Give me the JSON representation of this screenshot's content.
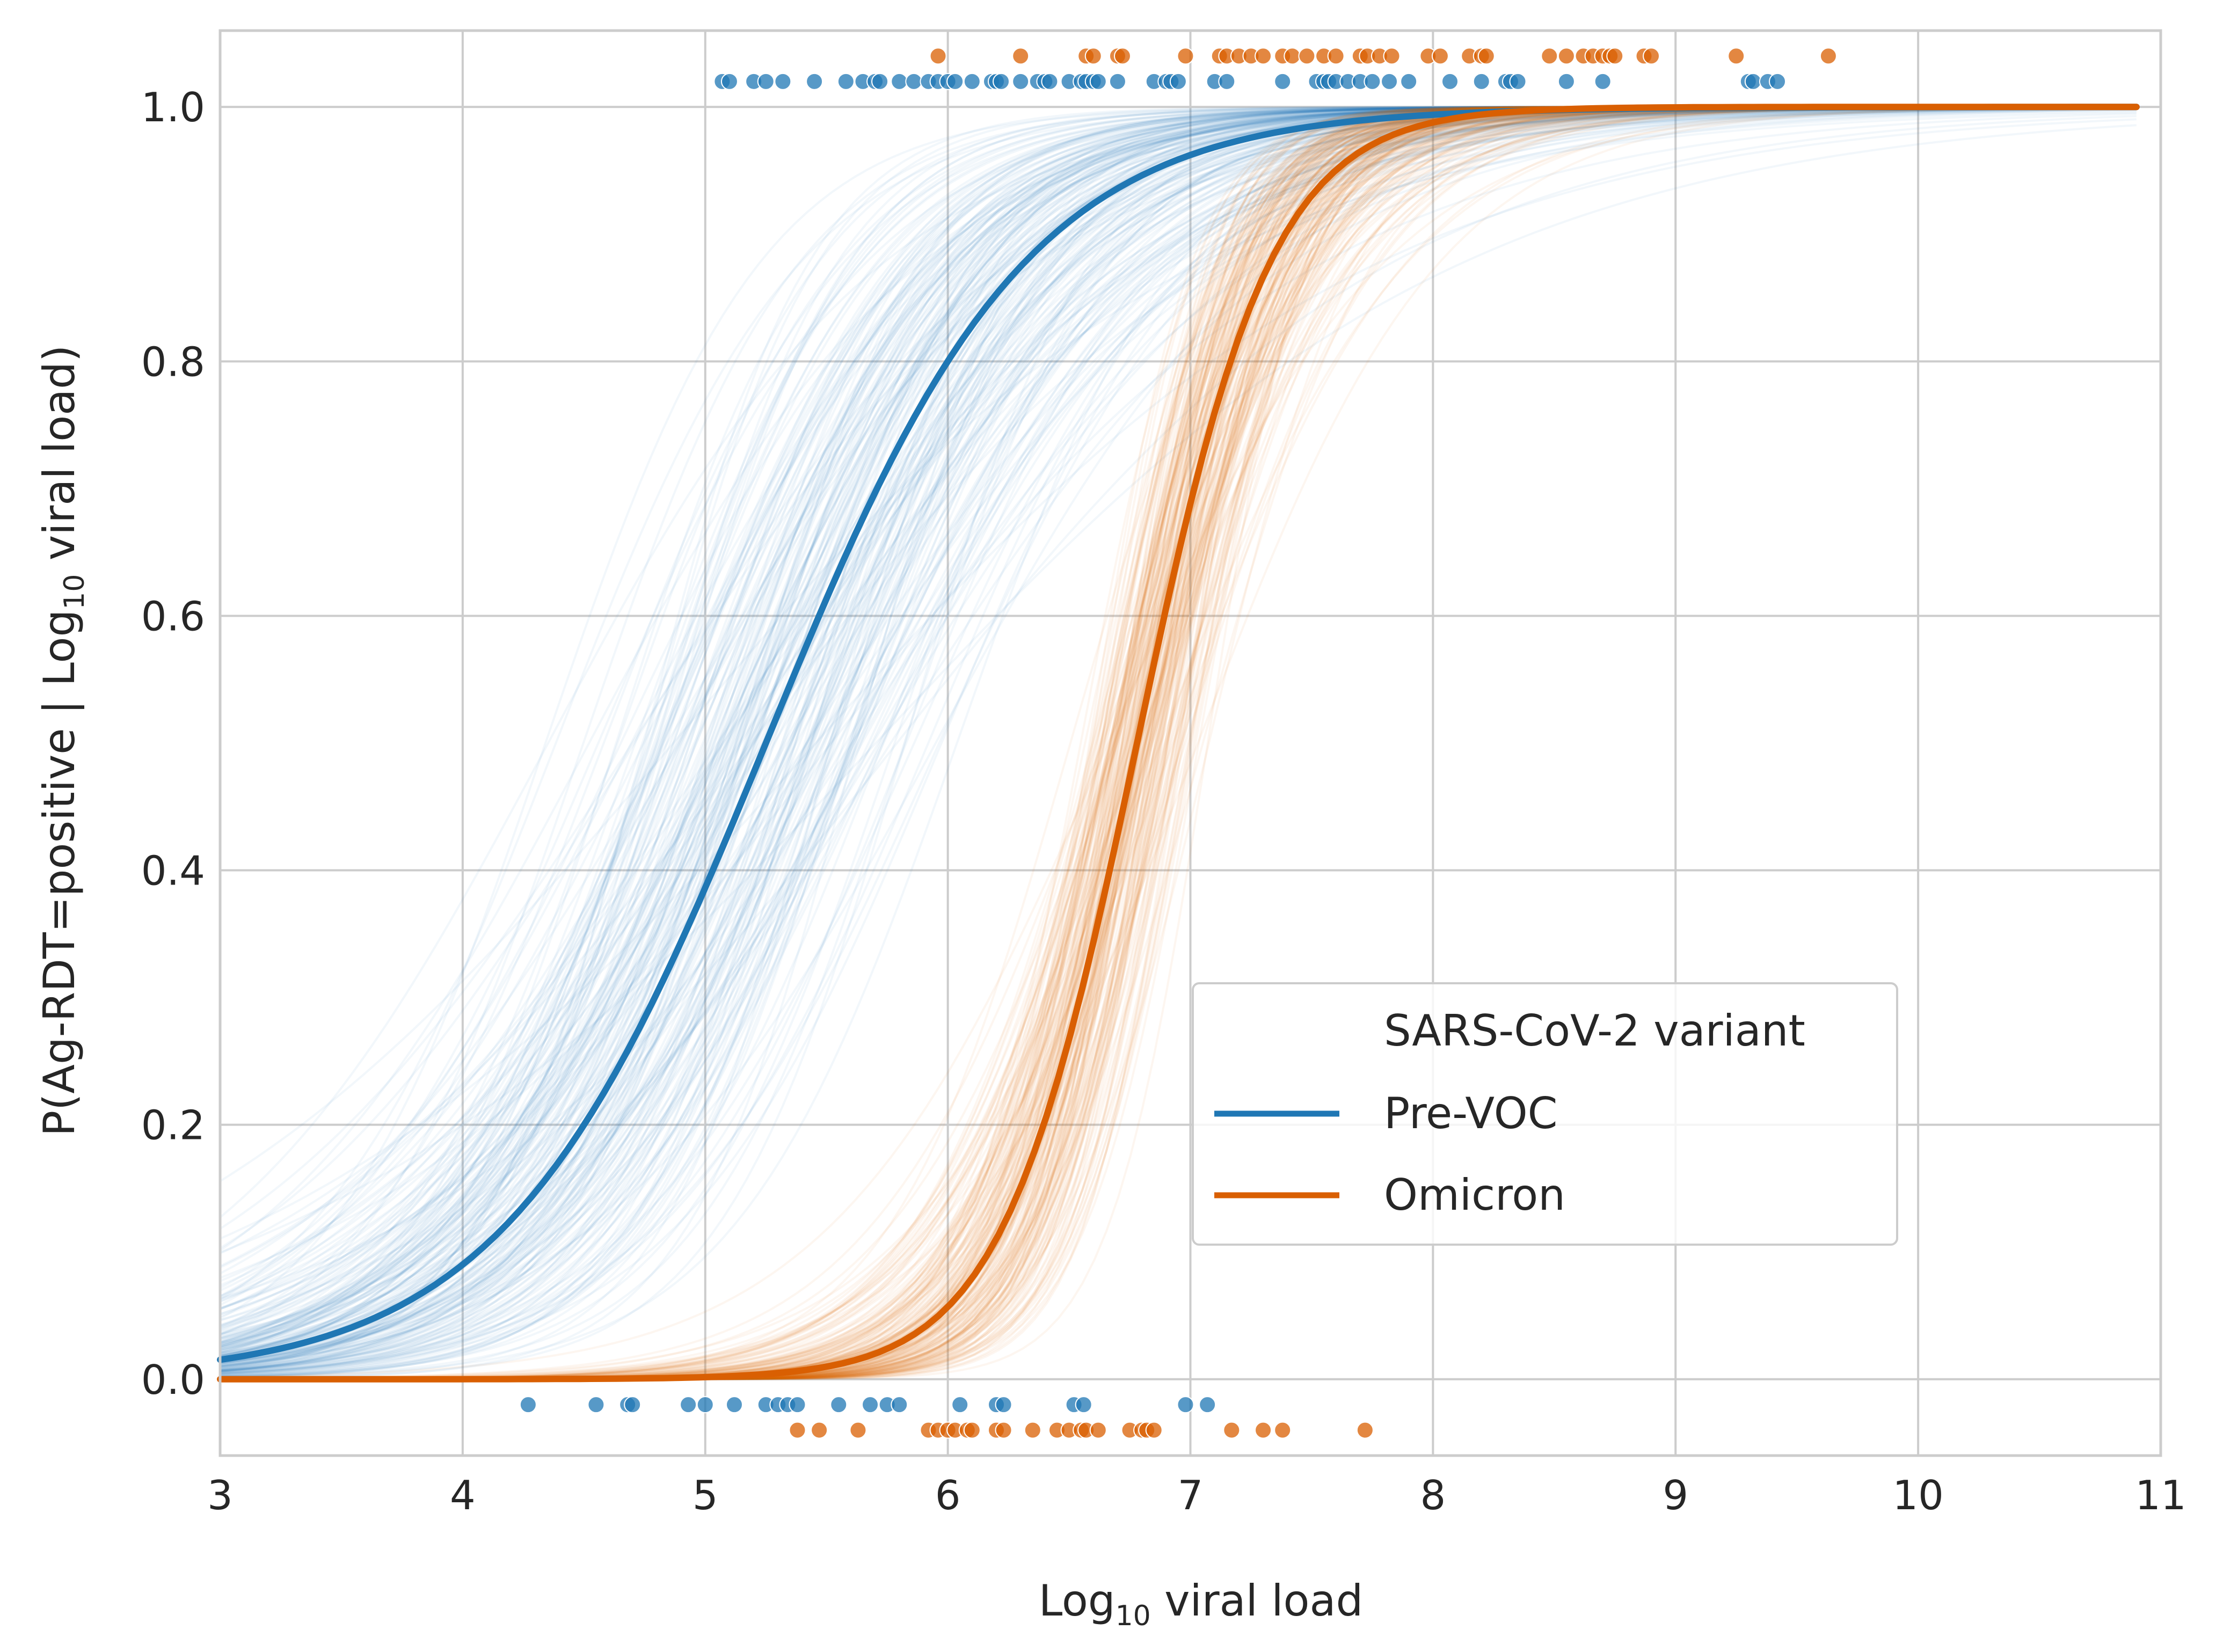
{
  "chart_data": {
    "type": "line",
    "xlabel": {
      "prefix": "Log",
      "sub": "10",
      "suffix": " viral load"
    },
    "ylabel": {
      "prefix": "P(Ag-RDT=positive | Log",
      "sub": "10",
      "suffix": " viral load)"
    },
    "xlim": [
      3,
      11
    ],
    "ylim": [
      -0.06,
      1.06
    ],
    "xticks": [
      "3",
      "4",
      "5",
      "6",
      "7",
      "8",
      "9",
      "10",
      "11"
    ],
    "yticks": [
      "0.0",
      "0.2",
      "0.4",
      "0.6",
      "0.8",
      "1.0"
    ],
    "grid": true,
    "legend": {
      "title": "SARS-CoV-2 variant",
      "placement": "lower-right",
      "entries": [
        "Pre-VOC",
        "Omicron"
      ]
    },
    "colors": {
      "pre_voc": "#1f77b4",
      "omicron": "#d95f02",
      "grid": "#cccccc",
      "axis": "#cccccc"
    },
    "series": [
      {
        "name": "Pre-VOC",
        "color": "#1f77b4",
        "x_range": [
          3,
          10.9
        ],
        "midpoint": 5.25,
        "slope": 1.85,
        "band": {
          "midpoint_spread": 0.35,
          "slope_spread": 0.45,
          "n_curves": 220
        },
        "positives_y": 1.02,
        "negatives_y": -0.02,
        "positives_x": [
          5.07,
          5.1,
          5.2,
          5.25,
          5.32,
          5.45,
          5.58,
          5.65,
          5.7,
          5.72,
          5.8,
          5.86,
          5.92,
          5.96,
          6.0,
          6.03,
          6.1,
          6.18,
          6.2,
          6.22,
          6.3,
          6.37,
          6.4,
          6.42,
          6.5,
          6.55,
          6.57,
          6.6,
          6.62,
          6.7,
          6.85,
          6.9,
          6.92,
          6.95,
          7.1,
          7.15,
          7.38,
          7.52,
          7.55,
          7.57,
          7.6,
          7.65,
          7.7,
          7.75,
          7.82,
          7.9,
          8.07,
          8.2,
          8.3,
          8.32,
          8.35,
          8.55,
          8.7,
          9.3,
          9.32,
          9.38,
          9.42
        ],
        "negatives_x": [
          4.27,
          4.55,
          4.68,
          4.7,
          4.93,
          5.0,
          5.12,
          5.25,
          5.3,
          5.34,
          5.38,
          5.55,
          5.68,
          5.75,
          5.8,
          6.05,
          6.2,
          6.23,
          6.52,
          6.56,
          6.98,
          7.07
        ]
      },
      {
        "name": "Omicron",
        "color": "#d95f02",
        "x_range": [
          3,
          10.9
        ],
        "midpoint": 6.78,
        "slope": 3.6,
        "band": {
          "midpoint_spread": 0.12,
          "slope_spread": 0.45,
          "n_curves": 220
        },
        "positives_y": 1.04,
        "negatives_y": -0.04,
        "positives_x": [
          5.96,
          6.3,
          6.57,
          6.6,
          6.7,
          6.72,
          6.98,
          7.12,
          7.15,
          7.2,
          7.25,
          7.3,
          7.38,
          7.42,
          7.48,
          7.55,
          7.6,
          7.7,
          7.73,
          7.78,
          7.83,
          7.98,
          8.03,
          8.15,
          8.2,
          8.22,
          8.48,
          8.55,
          8.62,
          8.66,
          8.7,
          8.73,
          8.75,
          8.87,
          8.9,
          9.25,
          9.63
        ],
        "negatives_x": [
          5.38,
          5.47,
          5.63,
          5.92,
          5.96,
          6.0,
          6.03,
          6.08,
          6.1,
          6.2,
          6.23,
          6.35,
          6.45,
          6.5,
          6.55,
          6.57,
          6.62,
          6.75,
          6.8,
          6.82,
          6.85,
          7.17,
          7.3,
          7.38,
          7.72
        ]
      }
    ]
  }
}
